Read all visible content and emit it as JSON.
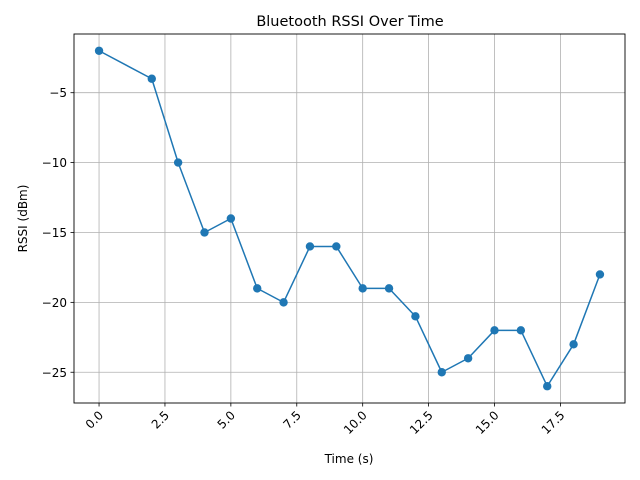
{
  "chart_data": {
    "type": "line",
    "title": "Bluetooth RSSI Over Time",
    "xlabel": "Time (s)",
    "ylabel": "RSSI (dBm)",
    "xlim": [
      -0.95,
      19.95
    ],
    "ylim": [
      -27.2,
      -0.8
    ],
    "xticks": [
      0.0,
      2.5,
      5.0,
      7.5,
      10.0,
      12.5,
      15.0,
      17.5
    ],
    "xtick_labels": [
      "0.0",
      "2.5",
      "5.0",
      "7.5",
      "10.0",
      "12.5",
      "15.0",
      "17.5"
    ],
    "xtick_rotation": 45,
    "yticks": [
      -25,
      -20,
      -15,
      -10,
      -5
    ],
    "ytick_labels": [
      "−25",
      "−20",
      "−15",
      "−10",
      "−5"
    ],
    "grid": true,
    "marker": "circle",
    "series": [
      {
        "color": "#1f77b4",
        "x": [
          0,
          2,
          3,
          4,
          5,
          6,
          7,
          8,
          9,
          10,
          11,
          12,
          13,
          14,
          15,
          16,
          17,
          18,
          19
        ],
        "y": [
          -2,
          -4,
          -10,
          -15,
          -14,
          -19,
          -20,
          -16,
          -16,
          -19,
          -19,
          -21,
          -25,
          -24,
          -22,
          -22,
          -26,
          -23,
          -18
        ]
      }
    ]
  }
}
